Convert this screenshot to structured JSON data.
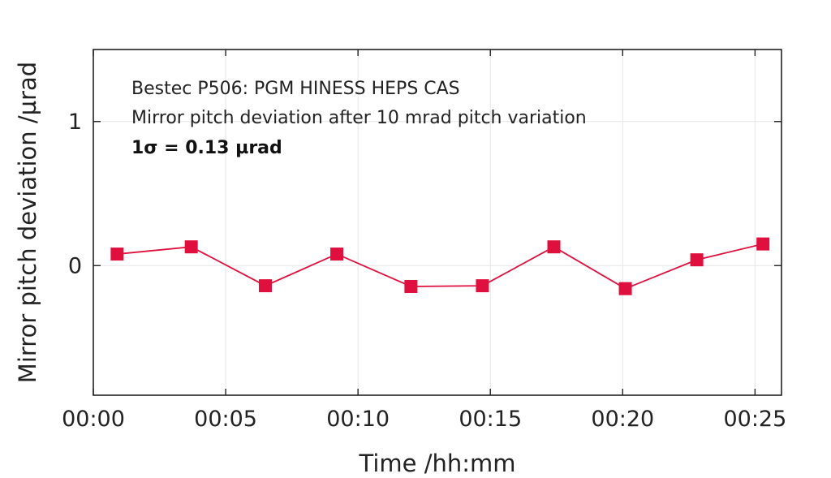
{
  "chart_data": {
    "type": "line",
    "title": "",
    "xlabel": "Time /hh:mm",
    "ylabel": "Mirror pitch deviation /µrad",
    "annotations": [
      "Bestec P506: PGM HINESS HEPS CAS",
      "Mirror pitch deviation after 10 mrad pitch variation",
      "1σ = 0.13 µrad"
    ],
    "xlim_minutes": [
      0,
      26
    ],
    "ylim": [
      -0.9,
      1.5
    ],
    "x_ticks": [
      {
        "value": 0,
        "label": "00:00"
      },
      {
        "value": 5,
        "label": "00:05"
      },
      {
        "value": 10,
        "label": "00:10"
      },
      {
        "value": 15,
        "label": "00:15"
      },
      {
        "value": 20,
        "label": "00:20"
      },
      {
        "value": 25,
        "label": "00:25"
      }
    ],
    "y_ticks": [
      {
        "value": 0,
        "label": "0"
      },
      {
        "value": 1,
        "label": "1"
      }
    ],
    "grid": true,
    "series": [
      {
        "color": "#e0103e",
        "marker": "square",
        "x_minutes": [
          0.9,
          3.7,
          6.5,
          9.2,
          12.0,
          14.7,
          17.4,
          20.1,
          22.8,
          25.3
        ],
        "x_labels": [
          "00:01",
          "00:04",
          "00:06",
          "00:09",
          "00:12",
          "00:15",
          "00:17",
          "00:20",
          "00:23",
          "00:25"
        ],
        "values": [
          0.08,
          0.13,
          -0.14,
          0.08,
          -0.145,
          -0.14,
          0.13,
          -0.16,
          0.04,
          0.15
        ]
      }
    ]
  }
}
